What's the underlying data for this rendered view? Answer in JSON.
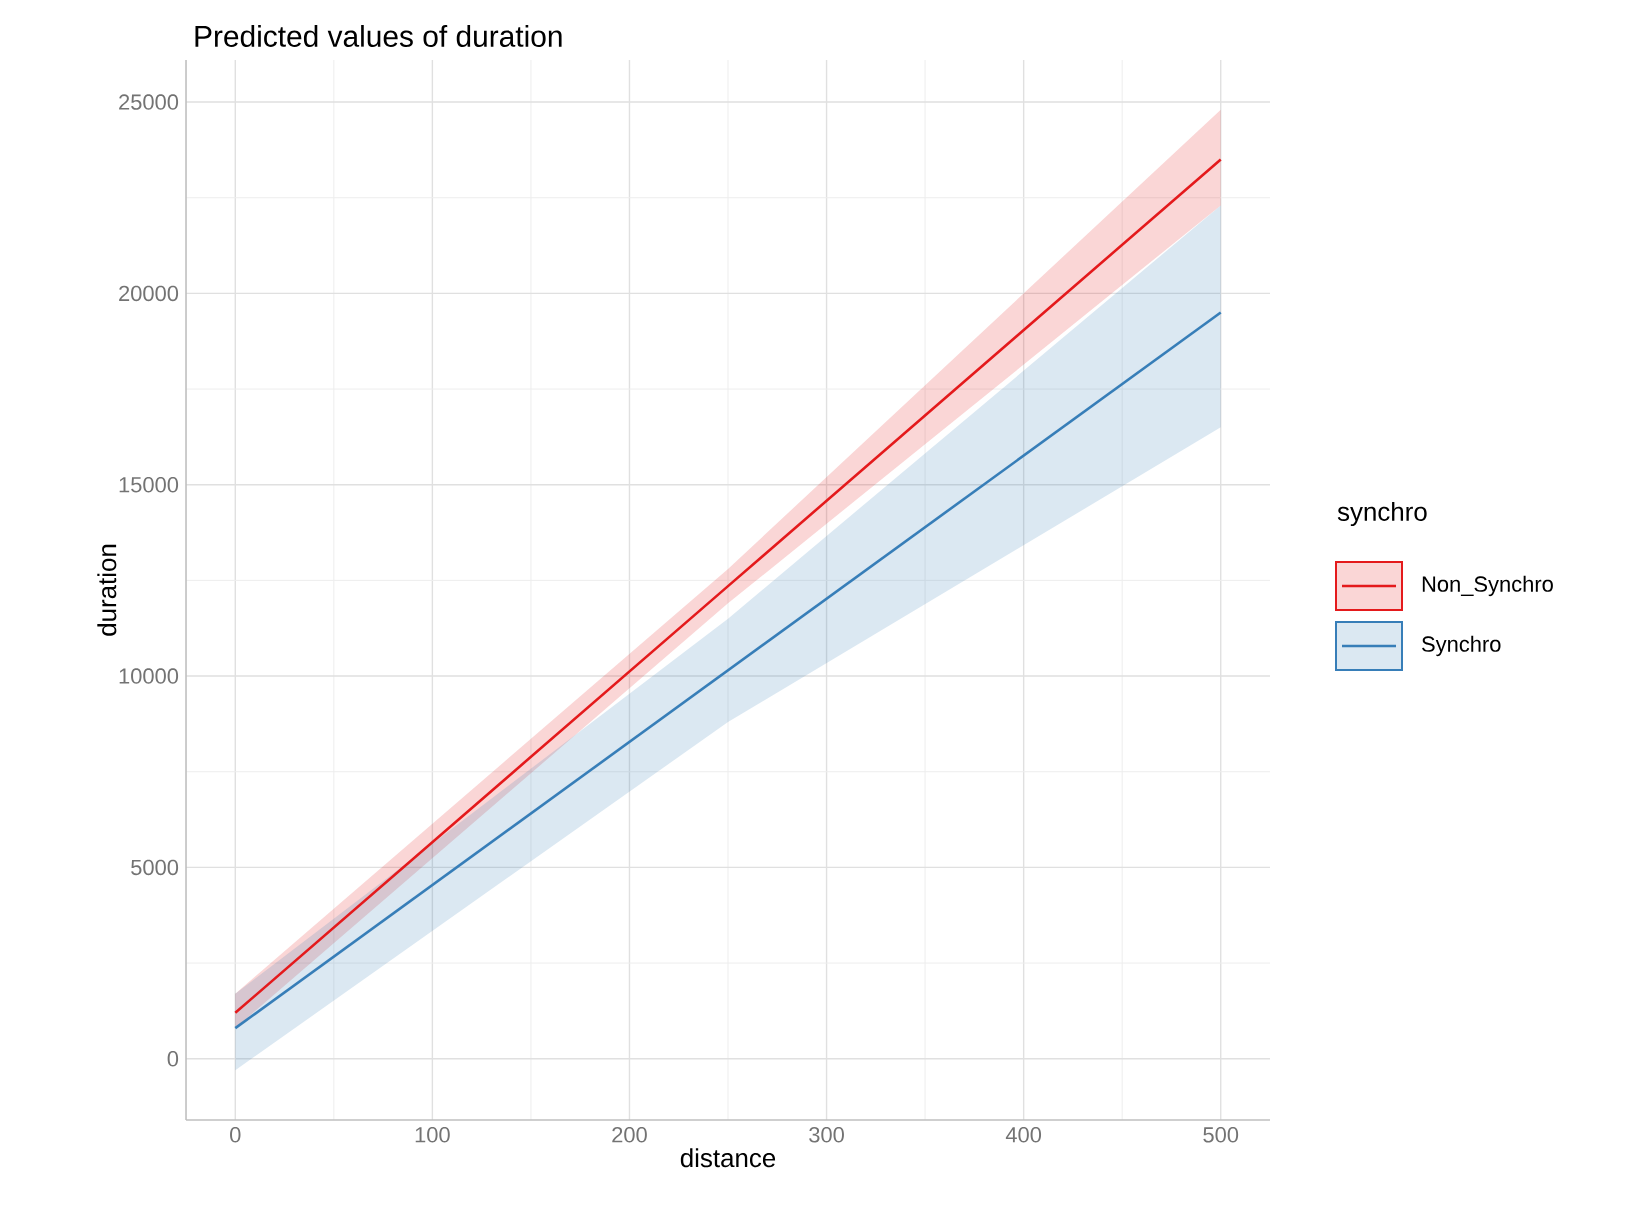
{
  "chart_data": {
    "type": "line",
    "title": "Predicted values of duration",
    "xlabel": "distance",
    "ylabel": "duration",
    "legend_title": "synchro",
    "x": [
      0,
      250,
      500
    ],
    "series": [
      {
        "name": "Non_Synchro",
        "color": "#e41a1c",
        "values": [
          1200,
          12350,
          23500
        ],
        "lower": [
          800,
          11900,
          22300
        ],
        "upper": [
          1700,
          12800,
          24800
        ]
      },
      {
        "name": "Synchro",
        "color": "#377eb8",
        "values": [
          800,
          10150,
          19500
        ],
        "lower": [
          -300,
          8800,
          16500
        ],
        "upper": [
          1700,
          11500,
          22300
        ]
      }
    ],
    "xlim": [
      -25,
      525
    ],
    "ylim": [
      -1600,
      26100
    ],
    "xticks": [
      0,
      100,
      200,
      300,
      400,
      500
    ],
    "yticks": [
      0,
      5000,
      10000,
      15000,
      20000,
      25000
    ],
    "grid": true,
    "legend": "right",
    "marker": "none",
    "line_style": "solid"
  }
}
